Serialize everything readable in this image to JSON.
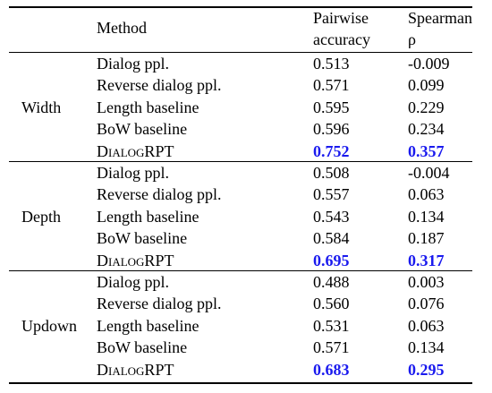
{
  "header": {
    "method": "Method",
    "accuracy": "Pairwise accuracy",
    "spearman": "Spearman ρ"
  },
  "groups": [
    {
      "name": "Width",
      "rows": [
        {
          "method": "Dialog ppl.",
          "accuracy": "0.513",
          "spearman": "-0.009"
        },
        {
          "method": "Reverse dialog ppl.",
          "accuracy": "0.571",
          "spearman": "0.099"
        },
        {
          "method": "Length baseline",
          "accuracy": "0.595",
          "spearman": "0.229"
        },
        {
          "method": "BoW baseline",
          "accuracy": "0.596",
          "spearman": "0.234"
        },
        {
          "method": "DialogRPT",
          "accuracy": "0.752",
          "spearman": "0.357"
        }
      ]
    },
    {
      "name": "Depth",
      "rows": [
        {
          "method": "Dialog ppl.",
          "accuracy": "0.508",
          "spearman": "-0.004"
        },
        {
          "method": "Reverse dialog ppl.",
          "accuracy": "0.557",
          "spearman": "0.063"
        },
        {
          "method": "Length baseline",
          "accuracy": "0.543",
          "spearman": "0.134"
        },
        {
          "method": "BoW baseline",
          "accuracy": "0.584",
          "spearman": "0.187"
        },
        {
          "method": "DialogRPT",
          "accuracy": "0.695",
          "spearman": "0.317"
        }
      ]
    },
    {
      "name": "Updown",
      "rows": [
        {
          "method": "Dialog ppl.",
          "accuracy": "0.488",
          "spearman": "0.003"
        },
        {
          "method": "Reverse dialog ppl.",
          "accuracy": "0.560",
          "spearman": "0.076"
        },
        {
          "method": "Length baseline",
          "accuracy": "0.531",
          "spearman": "0.063"
        },
        {
          "method": "BoW baseline",
          "accuracy": "0.571",
          "spearman": "0.134"
        },
        {
          "method": "DialogRPT",
          "accuracy": "0.683",
          "spearman": "0.295"
        }
      ]
    }
  ]
}
